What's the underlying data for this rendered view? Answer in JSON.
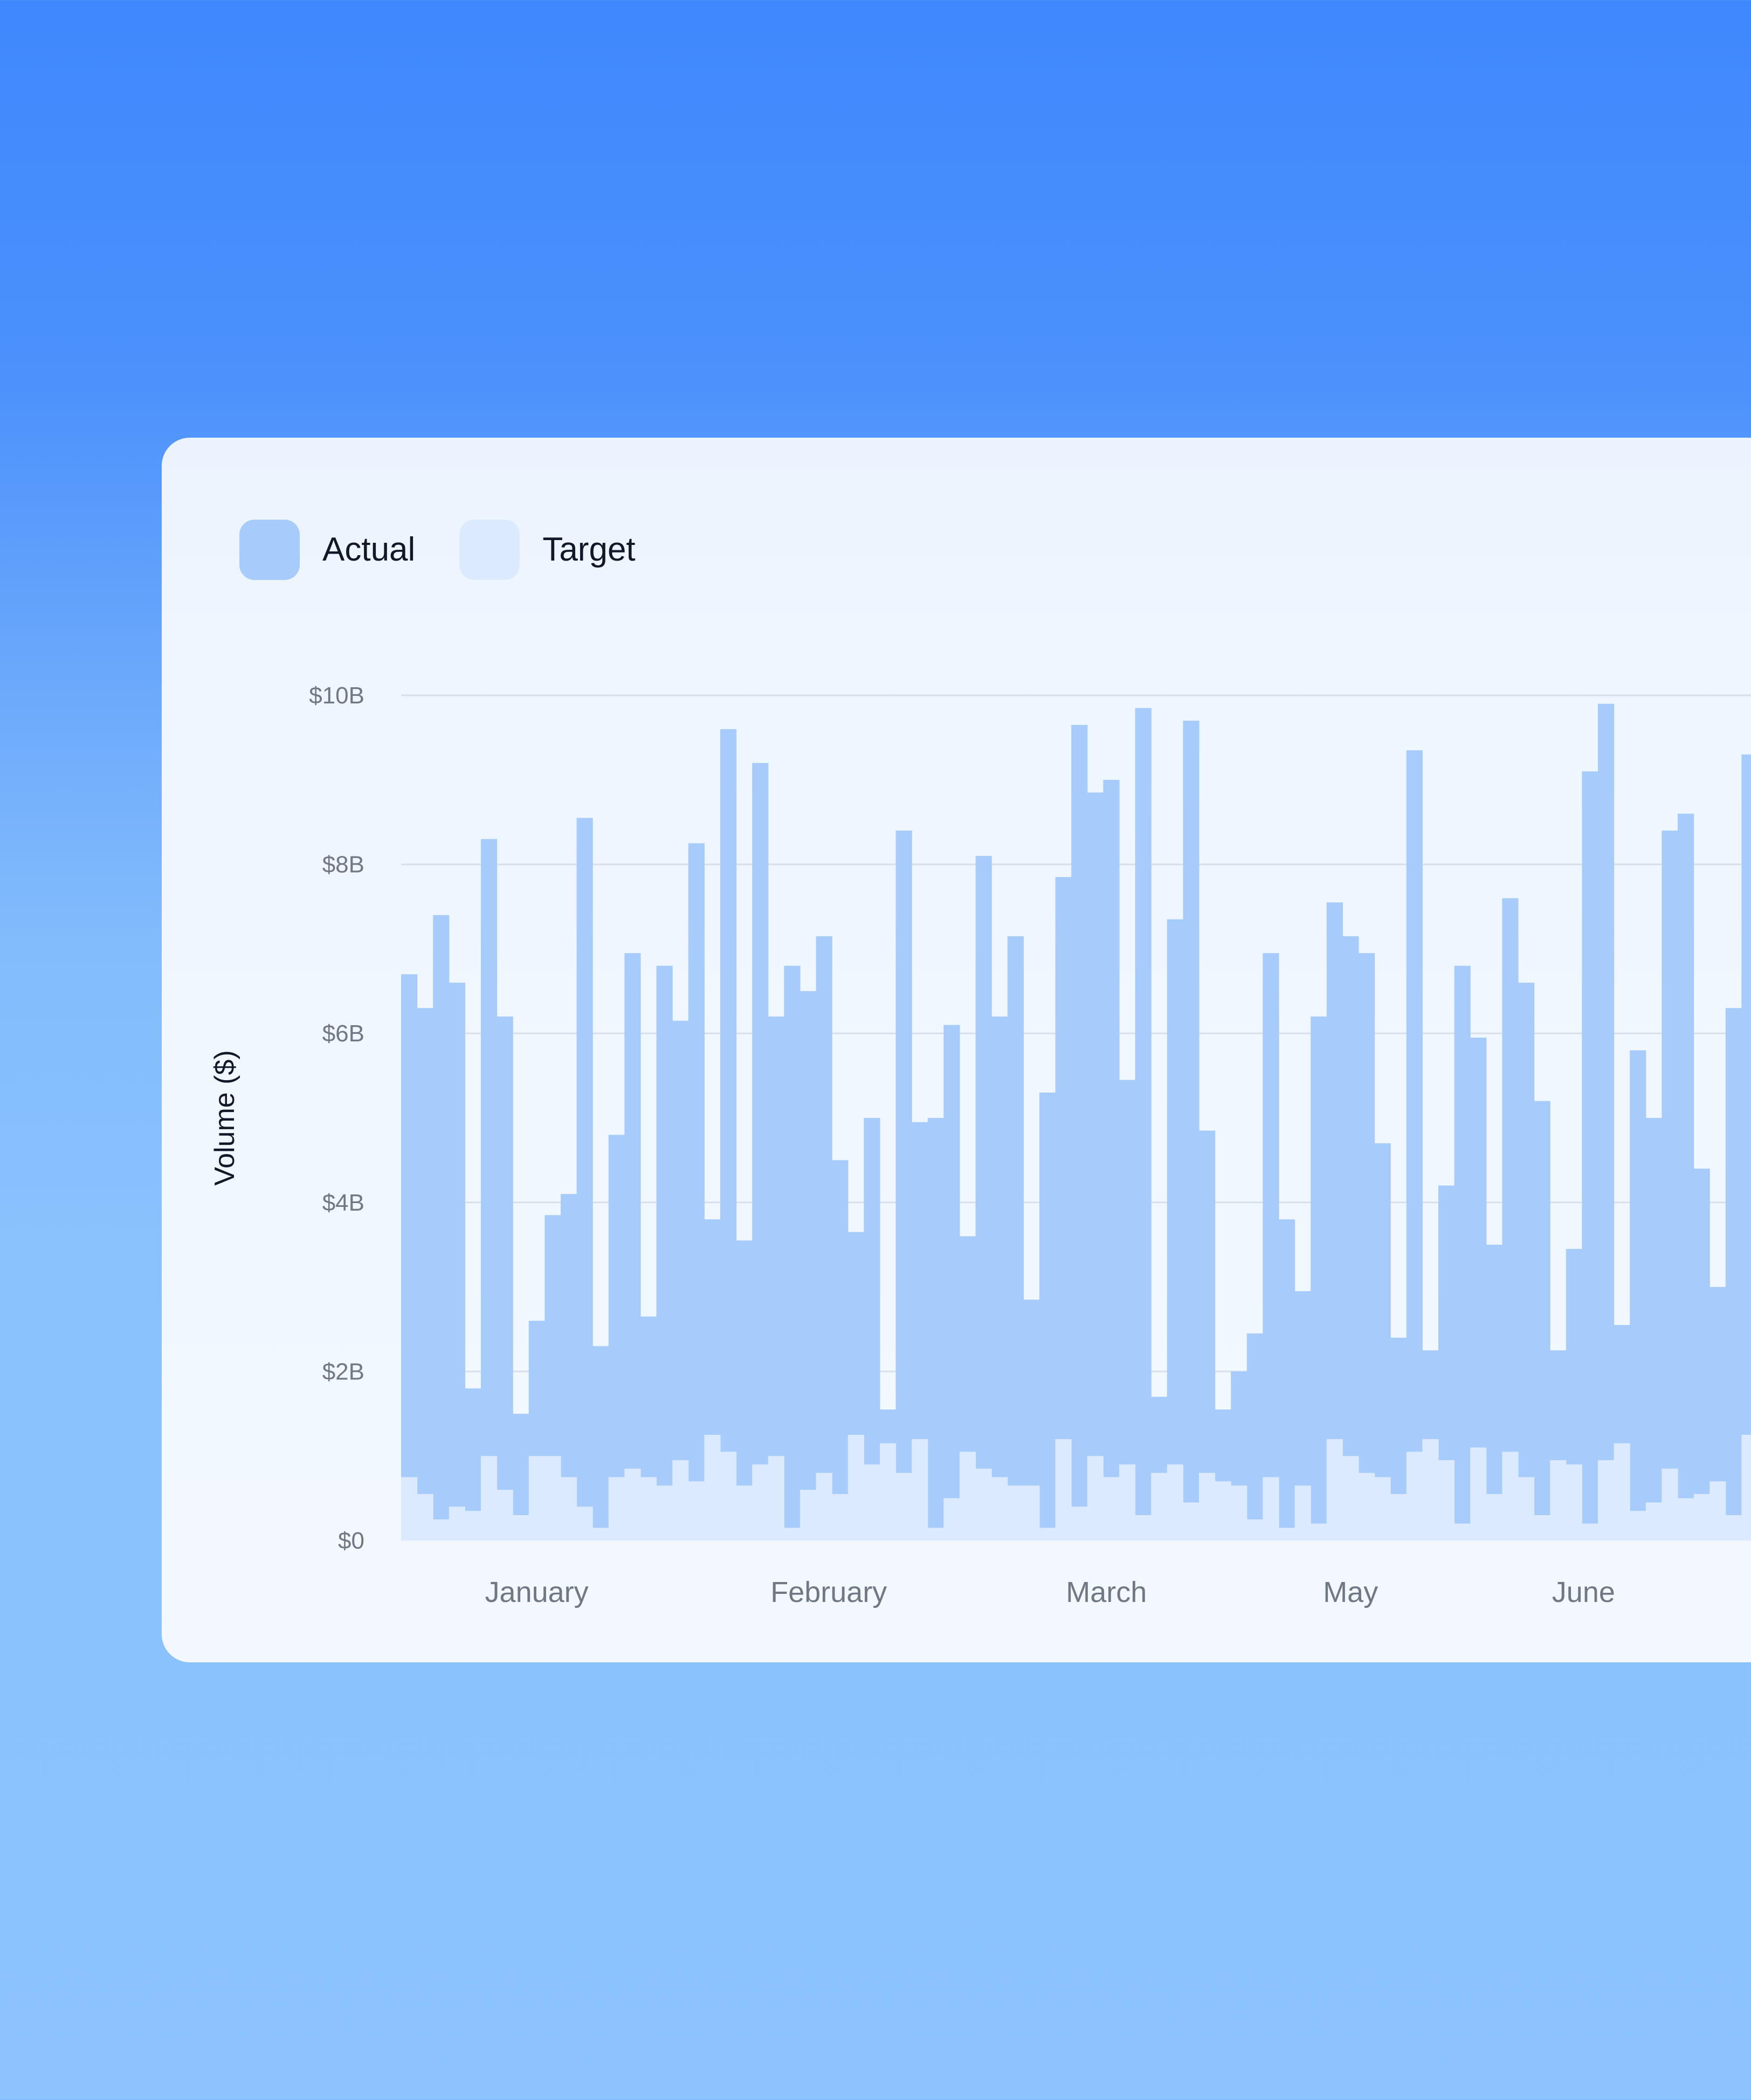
{
  "colors": {
    "actual": "#a7ccfc",
    "target": "#dbeafe",
    "grid": "#d7e0ea"
  },
  "chart_data": {
    "type": "bar",
    "legend": [
      {
        "name": "Actual",
        "color": "#a7ccfc"
      },
      {
        "name": "Target",
        "color": "#dbeafe"
      }
    ],
    "ylabel": "Volume ($)",
    "xlabel": "",
    "ylim": [
      0,
      10
    ],
    "yticks": [
      0,
      2,
      4,
      6,
      8,
      10
    ],
    "yticklabels": [
      "$0",
      "$2B",
      "$4B",
      "$6B",
      "$8B",
      "$10B"
    ],
    "grid": true,
    "legend_position": "top-left",
    "month_ticks": [
      {
        "label": "January",
        "center_index": 8.5
      },
      {
        "label": "February",
        "center_index": 26.8
      },
      {
        "label": "March",
        "center_index": 44.2
      },
      {
        "label": "May",
        "center_index": 59.5
      },
      {
        "label": "June",
        "center_index": 74.1
      }
    ],
    "series": [
      {
        "name": "Actual",
        "values": [
          6.7,
          6.3,
          7.4,
          6.6,
          1.8,
          8.3,
          6.2,
          1.5,
          2.6,
          3.85,
          4.1,
          8.55,
          2.3,
          4.8,
          6.95,
          2.65,
          6.8,
          6.15,
          8.25,
          3.8,
          9.6,
          3.55,
          9.2,
          6.2,
          6.8,
          6.5,
          7.15,
          4.5,
          3.65,
          5.0,
          1.55,
          8.4,
          4.95,
          5.0,
          6.1,
          3.6,
          8.1,
          6.2,
          7.15,
          2.85,
          5.3,
          7.85,
          9.65,
          8.85,
          9.0,
          5.45,
          9.85,
          1.7,
          7.35,
          9.7,
          4.85,
          1.55,
          2.0,
          2.45,
          6.95,
          3.8,
          2.95,
          6.2,
          7.55,
          7.15,
          6.95,
          4.7,
          2.4,
          9.35,
          2.25,
          4.2,
          6.8,
          5.95,
          3.5,
          7.6,
          6.6,
          5.2,
          2.25,
          3.45,
          9.1,
          9.9,
          2.55,
          5.8,
          5.0,
          8.4,
          8.6,
          4.4,
          3.0,
          6.3,
          9.3
        ]
      },
      {
        "name": "Target",
        "values": [
          0.75,
          0.55,
          0.25,
          0.4,
          0.35,
          1.0,
          0.6,
          0.3,
          1.0,
          1.0,
          0.75,
          0.4,
          0.15,
          0.75,
          0.85,
          0.75,
          0.65,
          0.95,
          0.7,
          1.25,
          1.05,
          0.65,
          0.9,
          1.0,
          0.15,
          0.6,
          0.8,
          0.55,
          1.25,
          0.9,
          1.15,
          0.8,
          1.2,
          0.15,
          0.5,
          1.05,
          0.85,
          0.75,
          0.65,
          0.65,
          0.15,
          1.2,
          0.4,
          1.0,
          0.75,
          0.9,
          0.3,
          0.8,
          0.9,
          0.45,
          0.8,
          0.7,
          0.65,
          0.25,
          0.75,
          0.15,
          0.65,
          0.2,
          1.2,
          1.0,
          0.8,
          0.75,
          0.55,
          1.05,
          1.2,
          0.95,
          0.2,
          1.1,
          0.55,
          1.05,
          0.75,
          0.3,
          0.95,
          0.9,
          0.2,
          0.95,
          1.15,
          0.35,
          0.45,
          0.85,
          0.5,
          0.55,
          0.7,
          0.3,
          1.25
        ]
      }
    ]
  }
}
